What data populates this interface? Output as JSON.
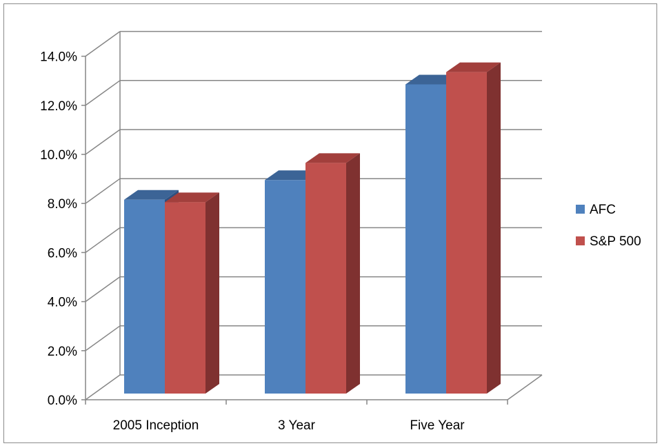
{
  "chart_data": {
    "type": "bar",
    "style": "3d-clustered-column",
    "categories": [
      "2005 Inception",
      "3 Year",
      "Five Year"
    ],
    "series": [
      {
        "name": "AFC",
        "values": [
          7.9,
          8.7,
          12.6
        ],
        "color": "#4F81BD",
        "top_color": "#3C6496",
        "side_color": "#2E5080"
      },
      {
        "name": "S&P 500",
        "values": [
          7.8,
          9.4,
          13.1
        ],
        "color": "#C0504D",
        "top_color": "#A23F3C",
        "side_color": "#7F3130"
      }
    ],
    "ylim": [
      0,
      14
    ],
    "yticks": [
      "0.0%",
      "2.0%",
      "4.0%",
      "6.0%",
      "8.0%",
      "10.0%",
      "12.0%",
      "14.0%"
    ],
    "ytick_values": [
      0,
      2,
      4,
      6,
      8,
      10,
      12,
      14
    ],
    "grid": true,
    "legend": "right",
    "title": "",
    "xlabel": "",
    "ylabel": ""
  }
}
